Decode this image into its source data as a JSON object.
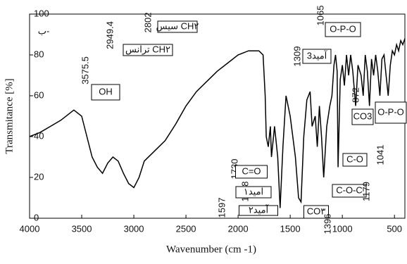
{
  "chart_data": {
    "type": "line",
    "x_label": "Wavenumber (cm -1)",
    "y_label": "Transmitance [%]",
    "xlim": [
      4000,
      400
    ],
    "ylim": [
      0,
      100
    ],
    "xticks": [
      4000,
      3500,
      3000,
      2500,
      2000,
      1500,
      1000,
      500
    ],
    "yticks": [
      0,
      20,
      40,
      60,
      80,
      100
    ],
    "series": [
      {
        "color": "#000000",
        "x": [
          4000,
          3900,
          3800,
          3700,
          3600,
          3575,
          3500,
          3450,
          3400,
          3350,
          3300,
          3250,
          3200,
          3150,
          3100,
          3050,
          3000,
          2950,
          2900,
          2800,
          2700,
          2600,
          2500,
          2400,
          2300,
          2200,
          2100,
          2000,
          1900,
          1800,
          1760,
          1740,
          1730,
          1710,
          1690,
          1680,
          1650,
          1620,
          1597,
          1570,
          1540,
          1500,
          1450,
          1420,
          1396,
          1370,
          1340,
          1309,
          1290,
          1260,
          1240,
          1220,
          1200,
          1179,
          1150,
          1120,
          1100,
          1080,
          1065,
          1050,
          1041,
          1020,
          1000,
          980,
          960,
          940,
          920,
          900,
          872,
          850,
          820,
          800,
          780,
          760,
          740,
          720,
          700,
          680,
          660,
          640,
          620,
          600,
          580,
          560,
          540,
          520,
          500,
          480,
          460,
          440,
          420,
          400
        ],
        "values": [
          40,
          42,
          45,
          48,
          52,
          53,
          50,
          40,
          30,
          25,
          22,
          27,
          30,
          28,
          22,
          17,
          15,
          20,
          28,
          33,
          38,
          46,
          55,
          62,
          67,
          72,
          76,
          80,
          82,
          82,
          80,
          60,
          40,
          35,
          45,
          30,
          45,
          30,
          5,
          35,
          60,
          50,
          30,
          10,
          8,
          40,
          58,
          62,
          45,
          50,
          35,
          55,
          40,
          20,
          45,
          55,
          60,
          75,
          80,
          72,
          25,
          68,
          75,
          65,
          80,
          70,
          80,
          72,
          55,
          75,
          70,
          60,
          80,
          72,
          55,
          78,
          70,
          80,
          72,
          60,
          78,
          80,
          70,
          60,
          75,
          82,
          80,
          85,
          82,
          87,
          85,
          88
        ]
      }
    ],
    "annotations": [
      "ب-",
      "3575.5",
      "OH",
      "2949.4",
      "ترانس CH۲",
      "2802",
      "سیس CH۲",
      "1730",
      "C=O",
      "1688",
      "آمید۱",
      "1597",
      "آمید۲",
      "1309",
      "آمید3",
      "CO۳",
      "1396",
      "1065",
      "O-P-O",
      "872",
      "CO3",
      "O-P-O",
      "C-O",
      "1041",
      "C-O-C",
      "1179"
    ]
  }
}
